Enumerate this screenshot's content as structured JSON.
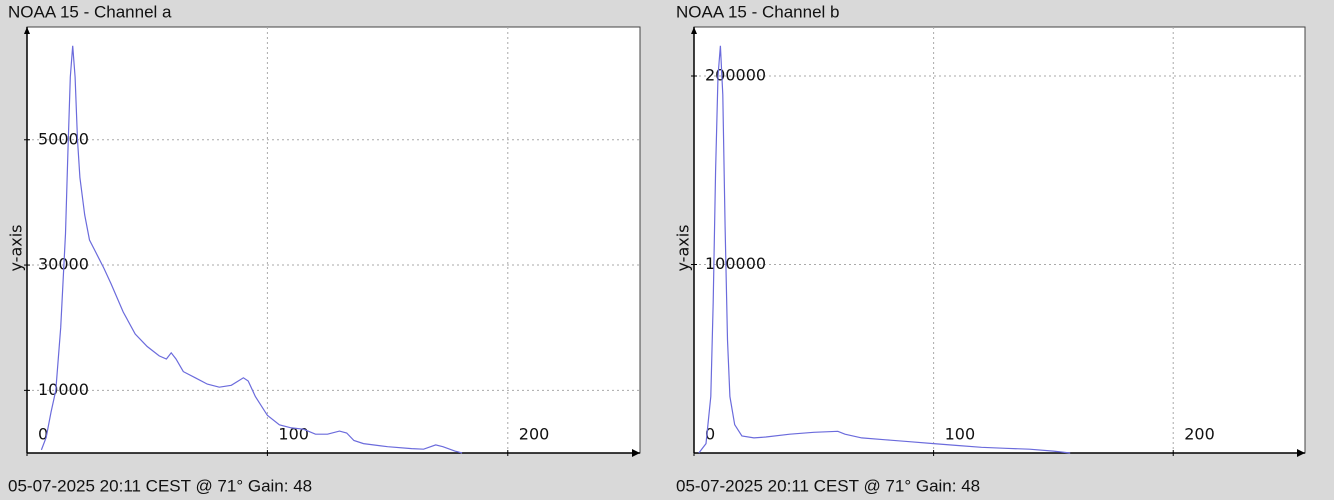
{
  "chart_data": [
    {
      "type": "line",
      "title": "NOAA 15 - Channel a",
      "footer": "05-07-2025 20:11 CEST @ 71° Gain: 48",
      "y_label": "y-axis",
      "x": [
        6,
        8,
        10,
        12,
        14,
        16,
        17,
        18,
        19,
        20,
        21,
        22,
        24,
        26,
        28,
        30,
        32,
        35,
        40,
        45,
        50,
        55,
        58,
        60,
        62,
        65,
        70,
        75,
        80,
        85,
        90,
        92,
        95,
        100,
        105,
        110,
        115,
        120,
        125,
        130,
        133,
        136,
        140,
        150,
        160,
        165,
        170,
        173,
        178,
        181
      ],
      "values": [
        500,
        2500,
        6500,
        10000,
        20000,
        35000,
        48000,
        60000,
        65000,
        60000,
        50000,
        44000,
        38000,
        34000,
        32500,
        31000,
        29500,
        27000,
        22500,
        19000,
        17000,
        15500,
        15000,
        16000,
        15000,
        13000,
        12000,
        11000,
        10500,
        10800,
        12000,
        11500,
        9000,
        6000,
        4500,
        4000,
        3800,
        3000,
        3000,
        3500,
        3200,
        2000,
        1500,
        1000,
        700,
        600,
        1300,
        1000,
        300,
        0
      ],
      "color": "#6b6bdc",
      "xlim": [
        0,
        255
      ],
      "ylim": [
        0,
        68000
      ],
      "xticks": [
        0,
        100,
        200
      ],
      "yticks": [
        10000,
        30000,
        50000
      ],
      "grid": true
    },
    {
      "type": "line",
      "title": "NOAA 15 - Channel b",
      "footer": "05-07-2025 20:11 CEST @ 71° Gain: 48",
      "y_label": "y-axis",
      "x": [
        2,
        5,
        7,
        8,
        9,
        10,
        11,
        12,
        13,
        14,
        15,
        17,
        20,
        25,
        30,
        40,
        50,
        60,
        63,
        70,
        80,
        90,
        100,
        110,
        120,
        130,
        140,
        150,
        157
      ],
      "values": [
        0,
        5000,
        30000,
        80000,
        150000,
        200000,
        216000,
        190000,
        120000,
        60000,
        30000,
        15000,
        9000,
        8000,
        8500,
        10000,
        11000,
        11500,
        10000,
        8000,
        7000,
        6000,
        5000,
        4000,
        3000,
        2500,
        2000,
        1000,
        0
      ],
      "color": "#6b6bdc",
      "xlim": [
        0,
        255
      ],
      "ylim": [
        0,
        226000
      ],
      "xticks": [
        0,
        100,
        200
      ],
      "yticks": [
        100000,
        200000
      ],
      "grid": true
    }
  ]
}
